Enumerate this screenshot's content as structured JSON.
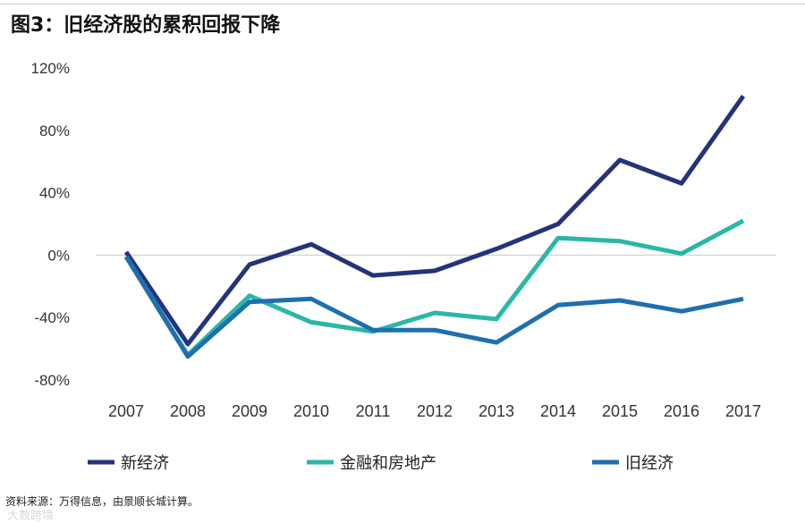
{
  "title": "图3：旧经济股的累积回报下降",
  "source": "资料来源：万得信息，由景顺长城计算。",
  "watermark": "大数跨境",
  "colors": {
    "new_economy": "#24337a",
    "finance_realestate": "#2bb7a8",
    "old_economy": "#1f6fae",
    "grid": "#d6d6d6"
  },
  "chart_data": {
    "type": "line",
    "title": "图3：旧经济股的累积回报下降",
    "xlabel": "",
    "ylabel": "",
    "categories": [
      "2007",
      "2008",
      "2009",
      "2010",
      "2011",
      "2012",
      "2013",
      "2014",
      "2015",
      "2016",
      "2017"
    ],
    "yticks": [
      120,
      80,
      40,
      0,
      -40,
      -80
    ],
    "ytick_labels": [
      "120%",
      "80%",
      "40%",
      "0%",
      "-40%",
      "-80%"
    ],
    "ylim": [
      -80,
      120
    ],
    "grid": "zero-line only",
    "legend_position": "bottom",
    "series": [
      {
        "name": "新经济",
        "color_key": "new_economy",
        "values": [
          2,
          -57,
          -6,
          7,
          -13,
          -10,
          4,
          20,
          61,
          46,
          102
        ]
      },
      {
        "name": "金融和房地产",
        "color_key": "finance_realestate",
        "values": [
          -1,
          -64,
          -26,
          -43,
          -49,
          -37,
          -41,
          11,
          9,
          1,
          22
        ]
      },
      {
        "name": "旧经济",
        "color_key": "old_economy",
        "values": [
          -1,
          -65,
          -30,
          -28,
          -48,
          -48,
          -56,
          -32,
          -29,
          -36,
          -28
        ]
      }
    ]
  }
}
